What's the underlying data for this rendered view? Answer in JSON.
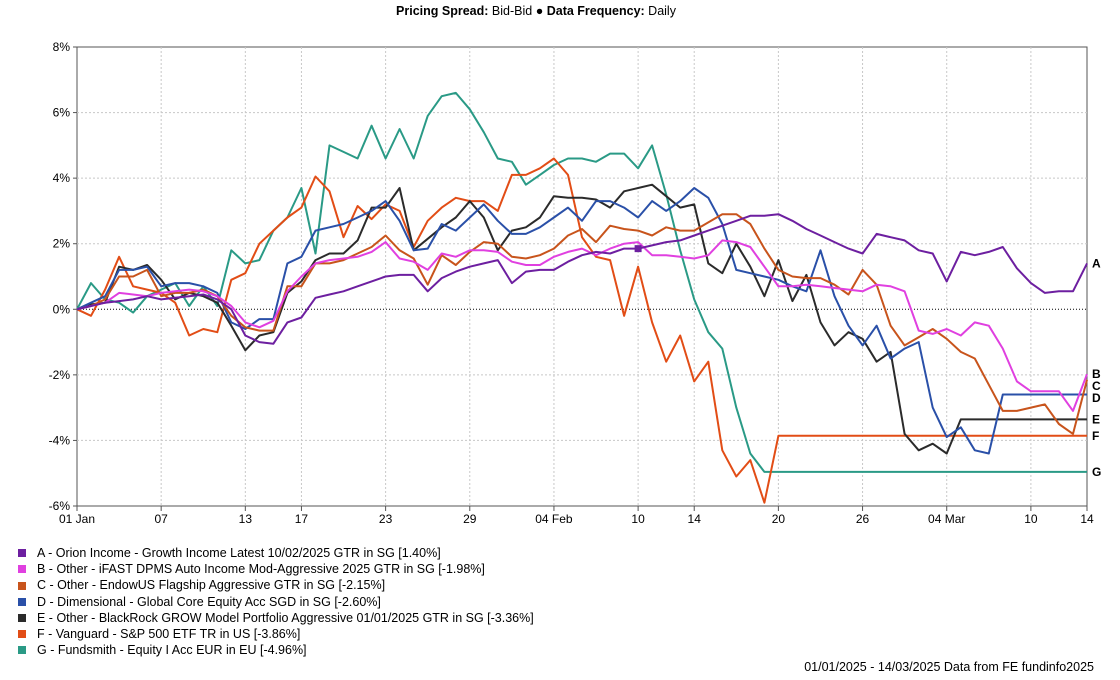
{
  "header": {
    "spread_label": "Pricing Spread:",
    "spread_value": "Bid-Bid",
    "separator": "●",
    "freq_label": "Data Frequency:",
    "freq_value": "Daily"
  },
  "footer": {
    "source": "01/01/2025 - 14/03/2025 Data from FE fundinfo2025"
  },
  "chart_data": {
    "type": "line",
    "x_axis": {
      "type": "date",
      "range": [
        "2025-01-01",
        "2025-03-14"
      ],
      "ticks": [
        {
          "date": "2025-01-01",
          "label": "01 Jan"
        },
        {
          "date": "2025-01-07",
          "label": "07"
        },
        {
          "date": "2025-01-13",
          "label": "13"
        },
        {
          "date": "2025-01-17",
          "label": "17"
        },
        {
          "date": "2025-01-23",
          "label": "23"
        },
        {
          "date": "2025-01-29",
          "label": "29"
        },
        {
          "date": "2025-02-04",
          "label": "04 Feb"
        },
        {
          "date": "2025-02-10",
          "label": "10"
        },
        {
          "date": "2025-02-14",
          "label": "14"
        },
        {
          "date": "2025-02-20",
          "label": "20"
        },
        {
          "date": "2025-02-26",
          "label": "26"
        },
        {
          "date": "2025-03-04",
          "label": "04 Mar"
        },
        {
          "date": "2025-03-10",
          "label": "10"
        },
        {
          "date": "2025-03-14",
          "label": "14"
        }
      ]
    },
    "y_axis": {
      "range": [
        -6,
        8
      ],
      "ticks": [
        {
          "value": 8,
          "label": "8%"
        },
        {
          "value": 6,
          "label": "6%"
        },
        {
          "value": 4,
          "label": "4%"
        },
        {
          "value": 2,
          "label": "2%"
        },
        {
          "value": 0,
          "label": "0%"
        },
        {
          "value": -2,
          "label": "-2%"
        },
        {
          "value": -4,
          "label": "-4%"
        },
        {
          "value": -6,
          "label": "-6%"
        }
      ],
      "zero_line": true
    },
    "grid": true,
    "dates": [
      "2025-01-01",
      "2025-01-02",
      "2025-01-03",
      "2025-01-04",
      "2025-01-05",
      "2025-01-06",
      "2025-01-07",
      "2025-01-08",
      "2025-01-09",
      "2025-01-10",
      "2025-01-11",
      "2025-01-12",
      "2025-01-13",
      "2025-01-14",
      "2025-01-15",
      "2025-01-16",
      "2025-01-17",
      "2025-01-18",
      "2025-01-19",
      "2025-01-20",
      "2025-01-21",
      "2025-01-22",
      "2025-01-23",
      "2025-01-24",
      "2025-01-25",
      "2025-01-26",
      "2025-01-27",
      "2025-01-28",
      "2025-01-29",
      "2025-01-30",
      "2025-01-31",
      "2025-02-01",
      "2025-02-02",
      "2025-02-03",
      "2025-02-04",
      "2025-02-05",
      "2025-02-06",
      "2025-02-07",
      "2025-02-08",
      "2025-02-09",
      "2025-02-10",
      "2025-02-11",
      "2025-02-12",
      "2025-02-13",
      "2025-02-14",
      "2025-02-15",
      "2025-02-16",
      "2025-02-17",
      "2025-02-18",
      "2025-02-19",
      "2025-02-20",
      "2025-02-21",
      "2025-02-22",
      "2025-02-23",
      "2025-02-24",
      "2025-02-25",
      "2025-02-26",
      "2025-02-27",
      "2025-02-28",
      "2025-03-01",
      "2025-03-02",
      "2025-03-03",
      "2025-03-04",
      "2025-03-05",
      "2025-03-06",
      "2025-03-07",
      "2025-03-08",
      "2025-03-09",
      "2025-03-10",
      "2025-03-11",
      "2025-03-12",
      "2025-03-13",
      "2025-03-14"
    ],
    "series": [
      {
        "letter": "A",
        "name": "A - Orion Income - Growth Income Latest 10/02/2025 GTR in SG [1.40%]",
        "color": "#6d1fa0",
        "end_value": 1.4,
        "marker": {
          "date": "2025-02-10",
          "value": 1.85
        },
        "values": [
          0,
          0.1,
          0.2,
          0.25,
          0.3,
          0.4,
          0.3,
          0.35,
          0.4,
          0.45,
          0.3,
          0,
          -0.8,
          -1.0,
          -1.05,
          -0.4,
          -0.25,
          0.35,
          0.45,
          0.55,
          0.7,
          0.85,
          1.0,
          1.05,
          1.05,
          0.55,
          0.95,
          1.15,
          1.3,
          1.4,
          1.5,
          0.8,
          1.15,
          1.2,
          1.2,
          1.45,
          1.65,
          1.75,
          1.7,
          1.85,
          1.85,
          1.95,
          2.05,
          2.1,
          2.25,
          2.4,
          2.55,
          2.7,
          2.85,
          2.85,
          2.9,
          2.7,
          2.45,
          2.25,
          2.05,
          1.85,
          1.7,
          2.3,
          2.2,
          2.1,
          1.8,
          1.7,
          0.85,
          1.75,
          1.65,
          1.75,
          1.9,
          1.25,
          0.8,
          0.5,
          0.55,
          0.55,
          1.4
        ]
      },
      {
        "letter": "B",
        "name": "B - Other - iFAST DPMS Auto Income Mod-Aggressive 2025 GTR in SG [-1.98%]",
        "color": "#e040e0",
        "end_value": -1.98,
        "values": [
          0,
          0.1,
          0.2,
          0.5,
          0.45,
          0.4,
          0.5,
          0.55,
          0.6,
          0.55,
          0.4,
          0.1,
          -0.4,
          -0.55,
          -0.35,
          0.55,
          1.0,
          1.4,
          1.5,
          1.55,
          1.6,
          1.75,
          2.05,
          1.55,
          1.45,
          1.2,
          1.7,
          1.6,
          1.8,
          1.8,
          1.75,
          1.45,
          1.35,
          1.35,
          1.6,
          1.75,
          1.85,
          1.65,
          1.85,
          2.0,
          2.05,
          1.65,
          1.65,
          1.6,
          1.55,
          1.65,
          2.1,
          2.05,
          1.9,
          1.3,
          0.7,
          0.7,
          0.75,
          0.7,
          0.65,
          0.6,
          0.55,
          0.75,
          0.7,
          0.55,
          -0.65,
          -0.75,
          -0.6,
          -0.8,
          -0.4,
          -0.5,
          -1.2,
          -2.2,
          -2.5,
          -2.5,
          -2.5,
          -3.1,
          -1.98
        ]
      },
      {
        "letter": "C",
        "name": "C - Other - EndowUS Flagship Aggressive GTR in SG [-2.15%]",
        "color": "#c8541c",
        "end_value": -2.15,
        "values": [
          0,
          0.1,
          0.3,
          1.0,
          1.0,
          1.2,
          0.4,
          0.5,
          0.5,
          0.6,
          0.4,
          -0.2,
          -0.55,
          -0.65,
          -0.65,
          0.7,
          0.7,
          1.4,
          1.4,
          1.5,
          1.7,
          1.9,
          2.25,
          1.8,
          1.55,
          0.75,
          1.65,
          1.35,
          1.75,
          2.05,
          2.0,
          1.6,
          1.55,
          1.65,
          1.85,
          2.25,
          2.45,
          2.05,
          2.55,
          2.45,
          2.4,
          2.25,
          2.5,
          2.4,
          2.4,
          2.65,
          2.9,
          2.9,
          2.6,
          1.85,
          1.2,
          1.0,
          0.95,
          0.95,
          0.75,
          0.45,
          1.2,
          0.75,
          -0.5,
          -1.1,
          -0.85,
          -0.6,
          -0.9,
          -1.3,
          -1.5,
          -2.3,
          -3.1,
          -3.1,
          -3.0,
          -2.9,
          -3.5,
          -3.8,
          -2.15
        ]
      },
      {
        "letter": "D",
        "name": "D - Dimensional - Global Core Equity Acc SGD in SG [-2.60%]",
        "color": "#2a50a8",
        "end_value": -2.6,
        "values": [
          0,
          0.2,
          0.4,
          1.2,
          1.2,
          1.3,
          0.7,
          0.8,
          0.8,
          0.7,
          0.5,
          -0.4,
          -0.6,
          -0.3,
          -0.3,
          1.4,
          1.6,
          2.4,
          2.5,
          2.6,
          2.8,
          3.0,
          3.3,
          2.7,
          1.8,
          1.85,
          2.6,
          2.4,
          2.8,
          3.2,
          2.7,
          2.3,
          2.3,
          2.5,
          2.8,
          3.1,
          2.7,
          3.3,
          3.3,
          3.1,
          2.8,
          3.3,
          3.0,
          3.3,
          3.7,
          3.4,
          2.6,
          1.2,
          1.1,
          1.0,
          0.9,
          0.7,
          0.55,
          1.8,
          0.4,
          -0.5,
          -1.1,
          -0.5,
          -1.5,
          -1.2,
          -1.0,
          -3.0,
          -3.9,
          -3.6,
          -4.3,
          -4.4,
          -2.6,
          -2.6,
          -2.6,
          -2.6,
          -2.6,
          -2.6,
          -2.6
        ]
      },
      {
        "letter": "E",
        "name": "E - Other - BlackRock GROW Model Portfolio Aggressive 01/01/2025 GTR in SG [-3.36%]",
        "color": "#2b2b2b",
        "end_value": -3.36,
        "values": [
          0,
          0.15,
          0.2,
          1.3,
          1.2,
          1.35,
          0.9,
          0.3,
          0.5,
          0.4,
          0.2,
          -0.5,
          -1.25,
          -0.8,
          -0.7,
          0.5,
          0.85,
          1.5,
          1.7,
          1.7,
          2.1,
          3.1,
          3.1,
          3.7,
          1.8,
          2.15,
          2.5,
          2.8,
          3.3,
          2.8,
          1.8,
          2.4,
          2.5,
          2.8,
          3.45,
          3.4,
          3.4,
          3.35,
          3.1,
          3.6,
          3.7,
          3.8,
          3.45,
          3.1,
          3.2,
          1.4,
          1.1,
          2.0,
          1.3,
          0.4,
          1.5,
          0.25,
          1.05,
          -0.4,
          -1.1,
          -0.7,
          -0.9,
          -1.6,
          -1.3,
          -3.8,
          -4.3,
          -4.1,
          -4.4,
          -3.36,
          -3.36,
          -3.36,
          -3.36,
          -3.36,
          -3.36,
          -3.36,
          -3.36,
          -3.36,
          -3.36
        ]
      },
      {
        "letter": "F",
        "name": "F - Vanguard - S&P 500 ETF TR in US [-3.86%]",
        "color": "#e24d16",
        "end_value": -3.86,
        "values": [
          0,
          -0.2,
          0.6,
          1.6,
          0.7,
          0.6,
          0.5,
          0.2,
          -0.8,
          -0.6,
          -0.7,
          0.9,
          1.1,
          2.0,
          2.4,
          2.8,
          3.1,
          4.05,
          3.6,
          2.2,
          3.15,
          2.75,
          3.2,
          3.0,
          1.9,
          2.7,
          3.1,
          3.4,
          3.3,
          3.3,
          3.0,
          4.1,
          4.1,
          4.3,
          4.6,
          4.1,
          2.2,
          1.6,
          1.5,
          -0.2,
          1.3,
          -0.4,
          -1.6,
          -0.8,
          -2.2,
          -1.6,
          -4.3,
          -5.1,
          -4.6,
          -5.9,
          -3.86,
          -3.86,
          -3.86,
          -3.86,
          -3.86,
          -3.86,
          -3.86,
          -3.86,
          -3.86,
          -3.86,
          -3.86,
          -3.86,
          -3.86,
          -3.86,
          -3.86,
          -3.86,
          -3.86,
          -3.86,
          -3.86,
          -3.86,
          -3.86,
          -3.86,
          -3.86
        ]
      },
      {
        "letter": "G",
        "name": "G - Fundsmith - Equity I Acc EUR in EU [-4.96%]",
        "color": "#2a9a86",
        "end_value": -4.96,
        "values": [
          0,
          0.8,
          0.3,
          0.2,
          -0.1,
          0.4,
          0.6,
          0.8,
          0.1,
          0.7,
          0.1,
          1.8,
          1.4,
          1.5,
          2.4,
          2.8,
          3.7,
          1.7,
          5.0,
          4.8,
          4.6,
          5.6,
          4.6,
          5.5,
          4.6,
          5.9,
          6.5,
          6.6,
          6.1,
          5.4,
          4.6,
          4.5,
          3.8,
          4.1,
          4.4,
          4.6,
          4.6,
          4.5,
          4.75,
          4.75,
          4.3,
          5.0,
          3.5,
          1.8,
          0.3,
          -0.7,
          -1.2,
          -3.0,
          -4.4,
          -4.96,
          -4.96,
          -4.96,
          -4.96,
          -4.96,
          -4.96,
          -4.96,
          -4.96,
          -4.96,
          -4.96,
          -4.96,
          -4.96,
          -4.96,
          -4.96,
          -4.96,
          -4.96,
          -4.96,
          -4.96,
          -4.96,
          -4.96,
          -4.96,
          -4.96,
          -4.96,
          -4.96
        ]
      }
    ]
  }
}
